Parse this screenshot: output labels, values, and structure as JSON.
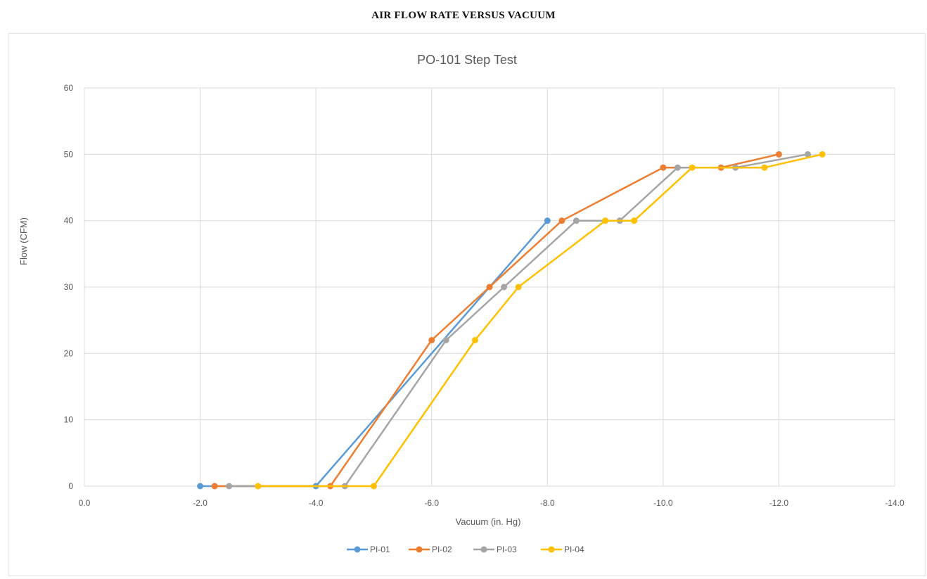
{
  "page_title": "AIR FLOW RATE VERSUS VACUUM",
  "chart_data": {
    "type": "line",
    "title": "PO-101 Step Test",
    "xlabel": "Vacuum (in. Hg)",
    "ylabel": "Flow (CFM)",
    "xlim": [
      0.0,
      -14.0
    ],
    "ylim": [
      0,
      60
    ],
    "x_ticks": [
      "0.0",
      "-2.0",
      "-4.0",
      "-6.0",
      "-8.0",
      "-10.0",
      "-12.0",
      "-14.0"
    ],
    "y_ticks": [
      "0",
      "10",
      "20",
      "30",
      "40",
      "50",
      "60"
    ],
    "grid": true,
    "legend_position": "bottom",
    "series": [
      {
        "name": "PI-01",
        "color": "#5b9bd5",
        "points": [
          [
            -2.0,
            0
          ],
          [
            -4.0,
            0
          ],
          [
            -8.0,
            40
          ]
        ]
      },
      {
        "name": "PI-02",
        "color": "#ed7d31",
        "points": [
          [
            -2.25,
            0
          ],
          [
            -4.25,
            0
          ],
          [
            -6.0,
            22
          ],
          [
            -7.0,
            30
          ],
          [
            -8.25,
            40
          ],
          [
            -10.0,
            48
          ],
          [
            -11.0,
            48
          ],
          [
            -12.0,
            50
          ]
        ]
      },
      {
        "name": "PI-03",
        "color": "#a5a5a5",
        "points": [
          [
            -2.5,
            0
          ],
          [
            -4.5,
            0
          ],
          [
            -6.25,
            22
          ],
          [
            -7.25,
            30
          ],
          [
            -8.5,
            40
          ],
          [
            -9.25,
            40
          ],
          [
            -10.25,
            48
          ],
          [
            -11.25,
            48
          ],
          [
            -12.5,
            50
          ]
        ]
      },
      {
        "name": "PI-04",
        "color": "#ffc000",
        "points": [
          [
            -3.0,
            0
          ],
          [
            -5.0,
            0
          ],
          [
            -6.75,
            22
          ],
          [
            -7.5,
            30
          ],
          [
            -9.0,
            40
          ],
          [
            -9.5,
            40
          ],
          [
            -10.5,
            48
          ],
          [
            -11.75,
            48
          ],
          [
            -12.75,
            50
          ]
        ]
      }
    ]
  }
}
